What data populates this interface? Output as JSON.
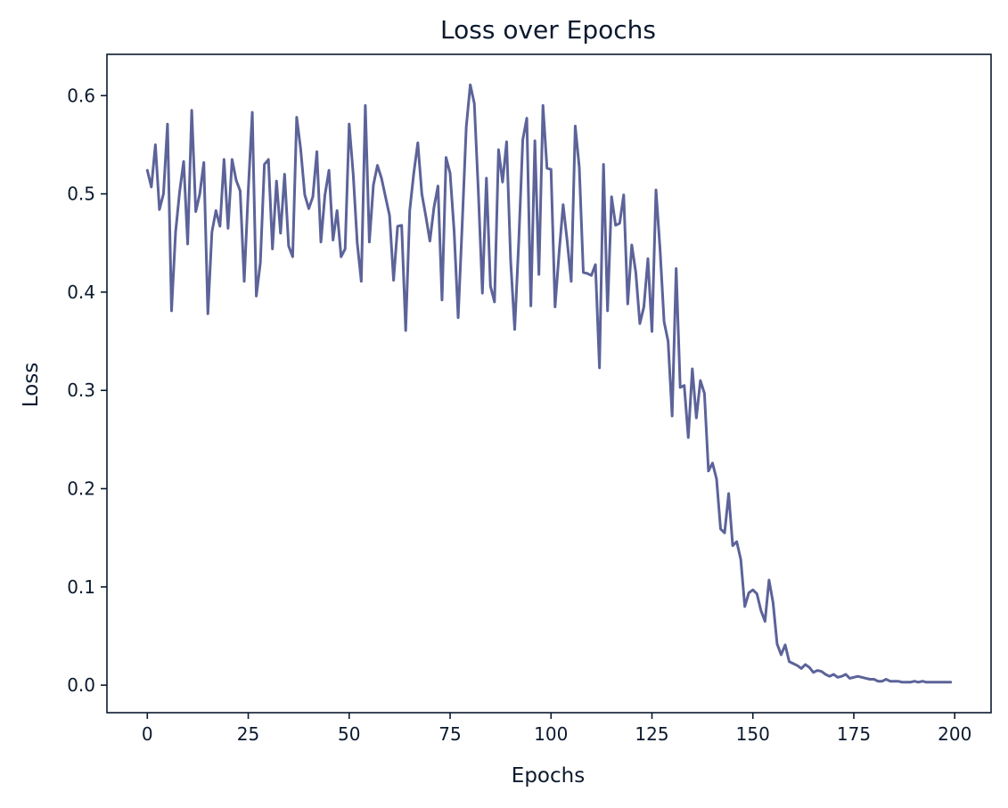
{
  "chart_data": {
    "type": "line",
    "title": "Loss over Epochs",
    "xlabel": "Epochs",
    "ylabel": "Loss",
    "xlim": [
      -10,
      209
    ],
    "ylim": [
      -0.028,
      0.642
    ],
    "xticks": [
      0,
      25,
      50,
      75,
      100,
      125,
      150,
      175,
      200
    ],
    "xtick_labels": [
      "0",
      "25",
      "50",
      "75",
      "100",
      "125",
      "150",
      "175",
      "200"
    ],
    "yticks": [
      0.0,
      0.1,
      0.2,
      0.3,
      0.4,
      0.5,
      0.6
    ],
    "ytick_labels": [
      "0.0",
      "0.1",
      "0.2",
      "0.3",
      "0.4",
      "0.5",
      "0.6"
    ],
    "grid": false,
    "colors": {
      "line": "#5c6399",
      "axes": "#0b1a2e"
    },
    "series": [
      {
        "x": [
          0,
          1,
          2,
          3,
          4,
          5,
          6,
          7,
          8,
          9,
          10,
          11,
          12,
          13,
          14,
          15,
          16,
          17,
          18,
          19,
          20,
          21,
          22,
          23,
          24,
          25,
          26,
          27,
          28,
          29,
          30,
          31,
          32,
          33,
          34,
          35,
          36,
          37,
          38,
          39,
          40,
          41,
          42,
          43,
          44,
          45,
          46,
          47,
          48,
          49,
          50,
          51,
          52,
          53,
          54,
          55,
          56,
          57,
          58,
          59,
          60,
          61,
          62,
          63,
          64,
          65,
          66,
          67,
          68,
          69,
          70,
          71,
          72,
          73,
          74,
          75,
          76,
          77,
          78,
          79,
          80,
          81,
          82,
          83,
          84,
          85,
          86,
          87,
          88,
          89,
          90,
          91,
          92,
          93,
          94,
          95,
          96,
          97,
          98,
          99,
          100,
          101,
          102,
          103,
          104,
          105,
          106,
          107,
          108,
          109,
          110,
          111,
          112,
          113,
          114,
          115,
          116,
          117,
          118,
          119,
          120,
          121,
          122,
          123,
          124,
          125,
          126,
          127,
          128,
          129,
          130,
          131,
          132,
          133,
          134,
          135,
          136,
          137,
          138,
          139,
          140,
          141,
          142,
          143,
          144,
          145,
          146,
          147,
          148,
          149,
          150,
          151,
          152,
          153,
          154,
          155,
          156,
          157,
          158,
          159,
          160,
          161,
          162,
          163,
          164,
          165,
          166,
          167,
          168,
          169,
          170,
          171,
          172,
          173,
          174,
          175,
          176,
          177,
          178,
          179,
          180,
          181,
          182,
          183,
          184,
          185,
          186,
          187,
          188,
          189,
          190,
          191,
          192,
          193,
          194,
          195,
          196,
          197,
          198,
          199
        ],
        "values": [
          0.524,
          0.507,
          0.55,
          0.484,
          0.5,
          0.571,
          0.381,
          0.461,
          0.502,
          0.533,
          0.449,
          0.585,
          0.482,
          0.5,
          0.532,
          0.378,
          0.461,
          0.483,
          0.467,
          0.535,
          0.465,
          0.535,
          0.514,
          0.503,
          0.411,
          0.503,
          0.583,
          0.396,
          0.43,
          0.53,
          0.535,
          0.444,
          0.513,
          0.46,
          0.52,
          0.447,
          0.436,
          0.578,
          0.545,
          0.499,
          0.485,
          0.497,
          0.543,
          0.451,
          0.499,
          0.524,
          0.453,
          0.483,
          0.436,
          0.444,
          0.571,
          0.52,
          0.45,
          0.411,
          0.59,
          0.451,
          0.509,
          0.529,
          0.516,
          0.497,
          0.478,
          0.412,
          0.467,
          0.468,
          0.361,
          0.483,
          0.521,
          0.552,
          0.5,
          0.477,
          0.452,
          0.486,
          0.508,
          0.392,
          0.537,
          0.521,
          0.462,
          0.374,
          0.469,
          0.568,
          0.611,
          0.592,
          0.502,
          0.399,
          0.516,
          0.406,
          0.39,
          0.545,
          0.512,
          0.553,
          0.432,
          0.362,
          0.451,
          0.555,
          0.577,
          0.386,
          0.554,
          0.418,
          0.59,
          0.526,
          0.525,
          0.385,
          0.44,
          0.489,
          0.452,
          0.411,
          0.569,
          0.527,
          0.42,
          0.419,
          0.417,
          0.428,
          0.323,
          0.53,
          0.381,
          0.497,
          0.468,
          0.47,
          0.499,
          0.388,
          0.448,
          0.42,
          0.368,
          0.385,
          0.434,
          0.36,
          0.504,
          0.444,
          0.37,
          0.35,
          0.274,
          0.424,
          0.303,
          0.305,
          0.252,
          0.322,
          0.272,
          0.31,
          0.297,
          0.218,
          0.226,
          0.21,
          0.159,
          0.155,
          0.195,
          0.142,
          0.146,
          0.128,
          0.08,
          0.094,
          0.097,
          0.093,
          0.076,
          0.065,
          0.107,
          0.084,
          0.042,
          0.031,
          0.041,
          0.024,
          0.022,
          0.02,
          0.017,
          0.021,
          0.018,
          0.013,
          0.015,
          0.014,
          0.011,
          0.009,
          0.011,
          0.008,
          0.009,
          0.011,
          0.007,
          0.008,
          0.009,
          0.008,
          0.007,
          0.006,
          0.006,
          0.004,
          0.004,
          0.006,
          0.004,
          0.004,
          0.004,
          0.003,
          0.003,
          0.003,
          0.004,
          0.003,
          0.004,
          0.003,
          0.003,
          0.003,
          0.003,
          0.003,
          0.003,
          0.003
        ]
      }
    ]
  }
}
